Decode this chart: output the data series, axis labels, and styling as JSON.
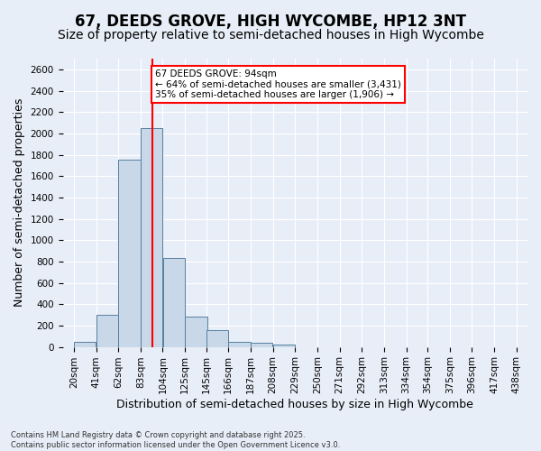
{
  "title": "67, DEEDS GROVE, HIGH WYCOMBE, HP12 3NT",
  "subtitle": "Size of property relative to semi-detached houses in High Wycombe",
  "xlabel": "Distribution of semi-detached houses by size in High Wycombe",
  "ylabel": "Number of semi-detached properties",
  "bin_labels": [
    "20sqm",
    "41sqm",
    "62sqm",
    "83sqm",
    "104sqm",
    "125sqm",
    "145sqm",
    "166sqm",
    "187sqm",
    "208sqm",
    "229sqm",
    "250sqm",
    "271sqm",
    "292sqm",
    "313sqm",
    "334sqm",
    "354sqm",
    "375sqm",
    "396sqm",
    "417sqm",
    "438sqm"
  ],
  "bar_values": [
    50,
    300,
    1750,
    2050,
    830,
    280,
    155,
    50,
    40,
    20,
    0,
    0,
    0,
    0,
    0,
    0,
    0,
    0,
    0,
    0,
    0
  ],
  "bar_color": "#c8d8e8",
  "bar_edge_color": "#5580a0",
  "ylim": [
    0,
    2700
  ],
  "yticks": [
    0,
    200,
    400,
    600,
    800,
    1000,
    1200,
    1400,
    1600,
    1800,
    2000,
    2200,
    2400,
    2600
  ],
  "property_size": 94,
  "property_line_color": "red",
  "annotation_text": "67 DEEDS GROVE: 94sqm\n← 64% of semi-detached houses are smaller (3,431)\n35% of semi-detached houses are larger (1,906) →",
  "annotation_box_color": "white",
  "annotation_box_edge_color": "red",
  "footer_line1": "Contains HM Land Registry data © Crown copyright and database right 2025.",
  "footer_line2": "Contains public sector information licensed under the Open Government Licence v3.0.",
  "background_color": "#e8eef8",
  "grid_color": "white",
  "title_fontsize": 12,
  "subtitle_fontsize": 10,
  "axis_label_fontsize": 9,
  "tick_fontsize": 7.5,
  "bin_edges": [
    20,
    41,
    62,
    83,
    104,
    125,
    145,
    166,
    187,
    208,
    229,
    250,
    271,
    292,
    313,
    334,
    354,
    375,
    396,
    417,
    438
  ]
}
